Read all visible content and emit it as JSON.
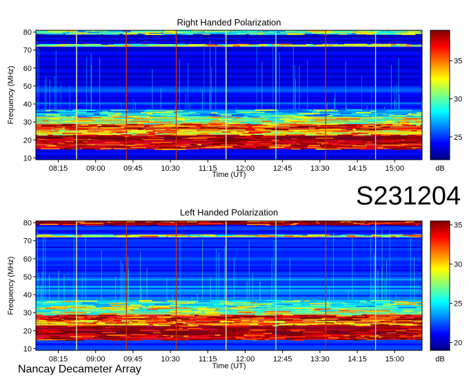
{
  "event_id": "S231204",
  "credit": "Nancay Decameter Array",
  "colors": {
    "colormap": [
      "#00007f",
      "#0000ff",
      "#0080ff",
      "#00ffff",
      "#80ff80",
      "#ffff00",
      "#ff8000",
      "#ff0000",
      "#7f0000"
    ]
  },
  "chart_data": [
    {
      "type": "heatmap",
      "title": "Right Handed Polarization",
      "xlabel": "Time (UT)",
      "ylabel": "Frequency (MHz)",
      "x_ticks": [
        "08:15",
        "09:00",
        "09:45",
        "10:30",
        "11:15",
        "12:00",
        "12:45",
        "13:30",
        "14:15",
        "15:00"
      ],
      "y_ticks": [
        10,
        20,
        30,
        40,
        50,
        60,
        70,
        80
      ],
      "ylim": [
        9,
        81
      ],
      "colorbar": {
        "label": "dB",
        "ticks": [
          25,
          30,
          35
        ],
        "range": [
          22,
          39
        ]
      },
      "background_level": 23.5,
      "bands": [
        {
          "fmin": 15,
          "fmax": 18,
          "level": 36
        },
        {
          "fmin": 18,
          "fmax": 23,
          "level": 38
        },
        {
          "fmin": 23,
          "fmax": 26,
          "level": 33
        },
        {
          "fmin": 26,
          "fmax": 29,
          "level": 36
        },
        {
          "fmin": 29,
          "fmax": 33,
          "level": 31
        },
        {
          "fmin": 33,
          "fmax": 37,
          "level": 28
        },
        {
          "fmin": 37,
          "fmax": 50,
          "level": 25
        },
        {
          "fmin": 72.5,
          "fmax": 73.5,
          "level": 31
        },
        {
          "fmin": 79,
          "fmax": 81,
          "level": 29
        }
      ],
      "vertical_lines": [
        {
          "time": "08:37",
          "color": "#ffff99"
        },
        {
          "time": "09:37",
          "color": "#cc3300"
        },
        {
          "time": "10:37",
          "color": "#cc3300"
        },
        {
          "time": "11:37",
          "color": "#ffff99"
        },
        {
          "time": "12:37",
          "color": "#80ffff"
        },
        {
          "time": "13:37",
          "color": "#cc3300"
        },
        {
          "time": "14:37",
          "color": "#80ffff"
        }
      ]
    },
    {
      "type": "heatmap",
      "title": "Left Handed Polarization",
      "xlabel": "Time (UT)",
      "ylabel": "Frequency (MHz)",
      "x_ticks": [
        "08:15",
        "09:00",
        "09:45",
        "10:30",
        "11:15",
        "12:00",
        "12:45",
        "13:30",
        "14:15",
        "15:00"
      ],
      "y_ticks": [
        10,
        20,
        30,
        40,
        50,
        60,
        70,
        80
      ],
      "ylim": [
        9,
        81
      ],
      "colorbar": {
        "label": "dB",
        "ticks": [
          20,
          25,
          30,
          35
        ],
        "range": [
          19,
          35.5
        ]
      },
      "background_level": 21.5,
      "bands": [
        {
          "fmin": 15,
          "fmax": 18,
          "level": 34
        },
        {
          "fmin": 18,
          "fmax": 23,
          "level": 35
        },
        {
          "fmin": 23,
          "fmax": 26,
          "level": 31
        },
        {
          "fmin": 26,
          "fmax": 29,
          "level": 33
        },
        {
          "fmin": 29,
          "fmax": 33,
          "level": 27.5
        },
        {
          "fmin": 33,
          "fmax": 37,
          "level": 26
        },
        {
          "fmin": 37,
          "fmax": 50,
          "level": 23
        },
        {
          "fmin": 72.5,
          "fmax": 73.5,
          "level": 28
        },
        {
          "fmin": 79,
          "fmax": 81,
          "level": 34
        }
      ],
      "vertical_lines": [
        {
          "time": "08:37",
          "color": "#ffff99"
        },
        {
          "time": "09:37",
          "color": "#cc3300"
        },
        {
          "time": "10:37",
          "color": "#cc3300"
        },
        {
          "time": "11:37",
          "color": "#ffff99"
        },
        {
          "time": "12:37",
          "color": "#80ffff"
        },
        {
          "time": "13:37",
          "color": "#cc3300"
        },
        {
          "time": "14:37",
          "color": "#80ffff"
        }
      ]
    }
  ]
}
